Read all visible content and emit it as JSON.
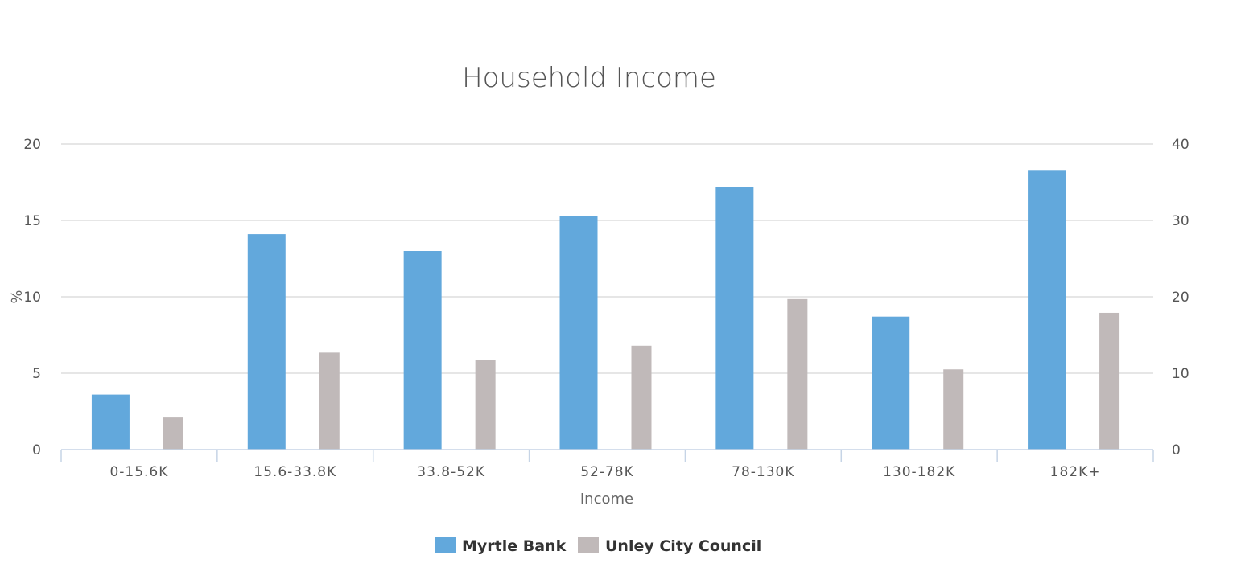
{
  "chart_data": {
    "type": "bar",
    "title": "Household Income",
    "xlabel": "Income",
    "ylabel": "%",
    "categories": [
      "0-15.6K",
      "15.6-33.8K",
      "33.8-52K",
      "52-78K",
      "78-130K",
      "130-182K",
      "182K+"
    ],
    "series": [
      {
        "name": "Myrtle Bank",
        "color": "#62a8dc",
        "axis": "left",
        "values": [
          3.6,
          14.1,
          13.0,
          15.3,
          17.2,
          8.7,
          18.3
        ]
      },
      {
        "name": "Unley City Council",
        "color": "#c0b9b9",
        "axis": "right",
        "values": [
          4.2,
          12.7,
          11.7,
          13.6,
          19.7,
          10.5,
          17.9
        ]
      }
    ],
    "y_left": {
      "ylim": [
        0,
        20
      ],
      "ticks": [
        "0",
        "5",
        "10",
        "15",
        "20"
      ]
    },
    "y_right": {
      "ylim": [
        0,
        40
      ],
      "ticks": [
        "0",
        "10",
        "20",
        "30",
        "40"
      ]
    },
    "grid": true,
    "legend_position": "bottom-center"
  }
}
